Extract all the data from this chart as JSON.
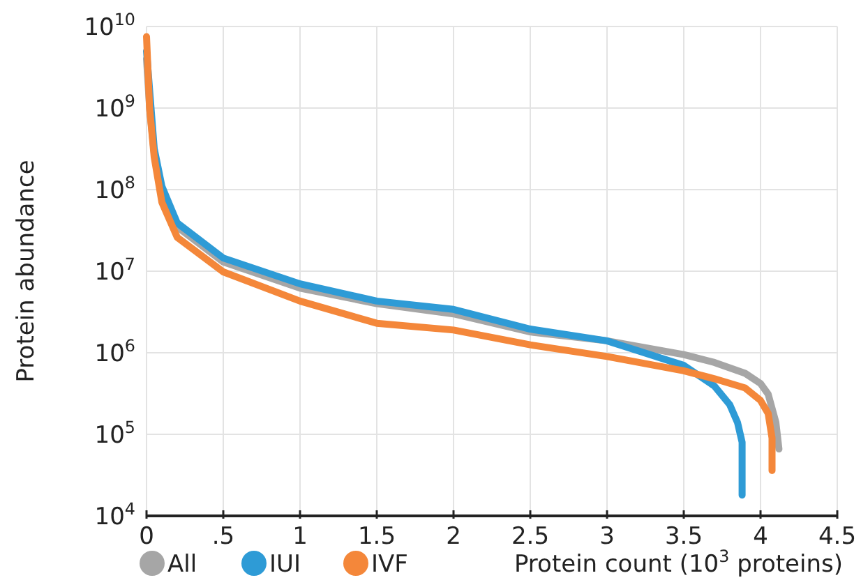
{
  "chart_data": {
    "type": "line",
    "xlabel": "Protein count (10$^{3}$ proteins)",
    "ylabel": "Protein abundance",
    "log": "y",
    "grid": true,
    "legend": "bottom",
    "marker": "none",
    "line_style": "solid",
    "xlim": [
      0,
      4.5
    ],
    "xticks": [
      0,
      {
        "value": 0.5,
        "label": ".5"
      },
      1,
      1.5,
      2,
      2.5,
      3,
      3.5,
      4,
      4.5
    ],
    "ylim": [
      10000,
      10000000000
    ],
    "yticks": [
      {
        "value": 10000,
        "label": "10$^{4}$"
      },
      {
        "value": 100000,
        "label": "10$^{5}$"
      },
      {
        "value": 1000000,
        "label": "10$^{6}$"
      },
      {
        "value": 10000000,
        "label": "10$^{7}$"
      },
      {
        "value": 100000000,
        "label": "10$^{8}$"
      },
      {
        "value": 1000000000,
        "label": "10$^{9}$"
      },
      {
        "value": 10000000000,
        "label": "10$^{10}$"
      }
    ],
    "series": [
      {
        "name": "All",
        "color": "#a6a6a6",
        "x": [
          0,
          0.02,
          0.05,
          0.1,
          0.2,
          0.5,
          1,
          1.5,
          2,
          2.5,
          3,
          3.5,
          3.7,
          3.9,
          4.0,
          4.05,
          4.1,
          4.12
        ],
        "values": [
          4000000000,
          1000000000,
          280000000,
          100000000,
          35000000,
          13000000,
          6200000,
          4000000,
          3000000,
          1800000,
          1400000,
          950000,
          760000,
          560000,
          420000,
          310000,
          140000,
          66000
        ]
      },
      {
        "name": "IUI",
        "color": "#2e9bd6",
        "x": [
          0,
          0.02,
          0.05,
          0.1,
          0.2,
          0.5,
          1,
          1.5,
          2,
          2.5,
          3,
          3.5,
          3.7,
          3.8,
          3.85,
          3.88,
          3.88
        ],
        "values": [
          5000000000,
          null,
          320000000,
          110000000,
          39000000,
          14500000,
          7000000,
          4300000,
          3400000,
          1950000,
          1400000,
          700000,
          390000,
          230000,
          140000,
          80000,
          18000
        ]
      },
      {
        "name": "IVF",
        "color": "#f4873a",
        "x": [
          0,
          0.02,
          0.05,
          0.1,
          0.2,
          0.5,
          1,
          1.5,
          2,
          2.5,
          3,
          3.5,
          3.7,
          3.9,
          4.0,
          4.05,
          4.075,
          4.075
        ],
        "values": [
          7500000000,
          1000000000,
          250000000,
          70000000,
          26000000,
          9800000,
          4300000,
          2300000,
          1900000,
          1250000,
          900000,
          600000,
          480000,
          370000,
          260000,
          180000,
          90000,
          36000
        ]
      }
    ]
  }
}
